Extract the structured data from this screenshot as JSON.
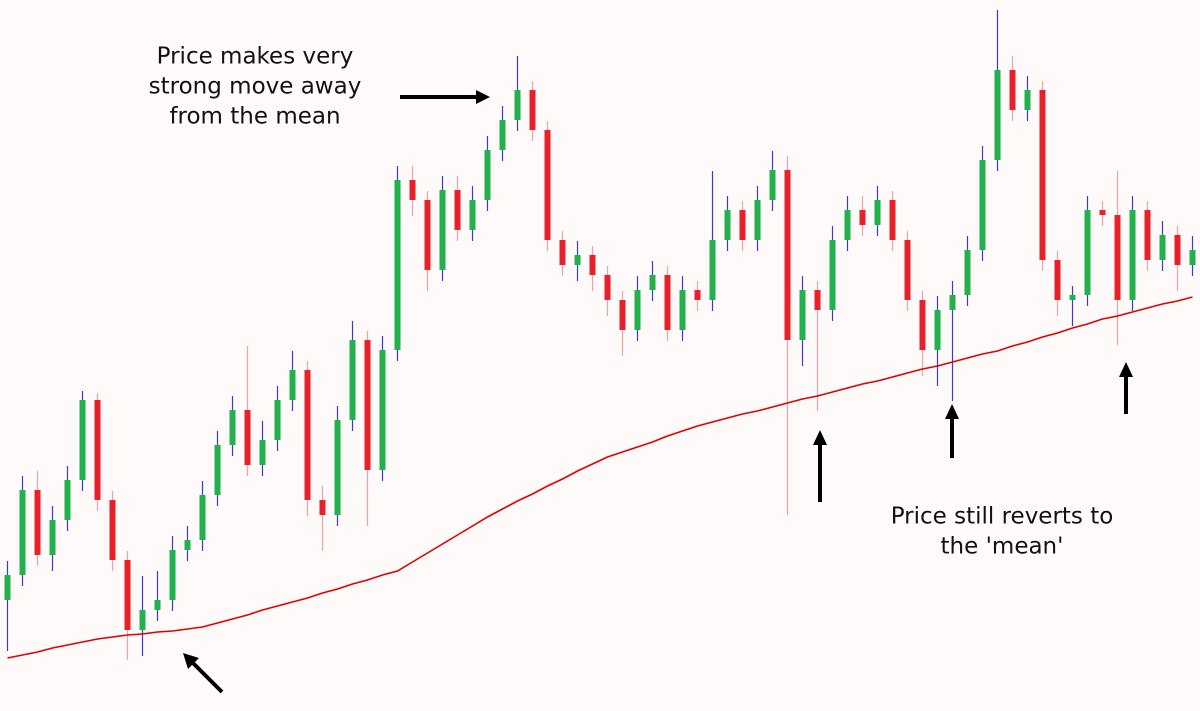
{
  "chart_data": {
    "type": "candlestick",
    "categories": [
      null,
      null,
      null,
      null,
      null,
      null,
      null,
      null,
      null,
      null,
      null,
      null,
      null,
      null,
      null,
      null,
      null,
      null,
      null,
      null,
      null,
      null,
      null,
      null,
      null,
      null,
      null,
      null,
      null,
      null,
      null,
      null,
      null,
      null,
      null,
      null,
      null,
      null,
      null,
      null,
      null,
      null,
      null,
      null,
      null,
      null,
      null,
      null,
      null,
      null,
      null,
      null,
      null,
      null,
      null,
      null,
      null,
      null,
      null,
      null,
      null,
      null,
      null,
      null,
      null,
      null,
      null,
      null,
      null,
      null,
      null,
      null,
      null,
      null,
      null,
      null,
      null,
      null,
      null,
      null
    ],
    "open": [
      111,
      136,
      221,
      156,
      191,
      231,
      311,
      211,
      151,
      81,
      101,
      111,
      161,
      171,
      216,
      266,
      301,
      246,
      271,
      311,
      341,
      211,
      196,
      291,
      371,
      241,
      361,
      531,
      511,
      441,
      521,
      481,
      511,
      561,
      591,
      621,
      581,
      471,
      446,
      456,
      436,
      411,
      381,
      421,
      436,
      381,
      421,
      411,
      471,
      501,
      471,
      511,
      541,
      371,
      421,
      401,
      471,
      501,
      486,
      511,
      471,
      411,
      361,
      401,
      416,
      461,
      551,
      641,
      601,
      621,
      451,
      411,
      416,
      501,
      496,
      411,
      501,
      451,
      476,
      446
    ],
    "high": [
      150,
      235,
      240,
      205,
      245,
      320,
      318,
      220,
      160,
      135,
      140,
      175,
      185,
      230,
      280,
      315,
      365,
      290,
      325,
      360,
      350,
      225,
      305,
      390,
      380,
      375,
      545,
      545,
      520,
      535,
      535,
      525,
      575,
      605,
      655,
      630,
      590,
      480,
      470,
      465,
      445,
      420,
      435,
      450,
      445,
      435,
      430,
      540,
      515,
      510,
      525,
      560,
      555,
      435,
      430,
      485,
      515,
      515,
      525,
      520,
      480,
      420,
      415,
      430,
      475,
      565,
      701,
      655,
      635,
      630,
      460,
      425,
      515,
      510,
      540,
      515,
      510,
      490,
      485,
      475
    ],
    "low": [
      60,
      125,
      145,
      140,
      180,
      220,
      200,
      140,
      51,
      55,
      90,
      100,
      150,
      160,
      205,
      255,
      235,
      235,
      260,
      300,
      195,
      160,
      185,
      280,
      185,
      230,
      350,
      495,
      420,
      430,
      470,
      470,
      500,
      550,
      580,
      570,
      460,
      435,
      430,
      420,
      395,
      355,
      370,
      410,
      370,
      370,
      400,
      400,
      460,
      460,
      460,
      500,
      196,
      345,
      300,
      390,
      460,
      475,
      475,
      460,
      400,
      335,
      325,
      310,
      405,
      450,
      540,
      590,
      590,
      440,
      395,
      385,
      405,
      485,
      366,
      400,
      440,
      440,
      420,
      435
    ],
    "close": [
      136,
      221,
      156,
      191,
      231,
      311,
      211,
      151,
      81,
      101,
      111,
      161,
      171,
      216,
      266,
      301,
      246,
      271,
      311,
      341,
      211,
      196,
      291,
      371,
      241,
      361,
      531,
      511,
      441,
      521,
      481,
      511,
      561,
      591,
      621,
      581,
      471,
      446,
      456,
      436,
      411,
      381,
      421,
      436,
      381,
      421,
      411,
      471,
      501,
      471,
      511,
      541,
      371,
      421,
      401,
      471,
      501,
      486,
      511,
      471,
      411,
      361,
      401,
      416,
      461,
      551,
      641,
      601,
      621,
      451,
      411,
      416,
      501,
      496,
      411,
      501,
      451,
      476,
      446,
      461
    ],
    "moving_average": {
      "color": "#e00000",
      "values": [
        53,
        56,
        59,
        63,
        66,
        69,
        72,
        74,
        76,
        77,
        79,
        80,
        82,
        84,
        88,
        92,
        96,
        101,
        105,
        109,
        113,
        118,
        122,
        127,
        131,
        136,
        140,
        149,
        158,
        167,
        176,
        185,
        194,
        202,
        210,
        217,
        225,
        232,
        240,
        247,
        254,
        259,
        264,
        269,
        275,
        280,
        285,
        289,
        293,
        297,
        300,
        304,
        308,
        312,
        315,
        319,
        323,
        327,
        330,
        334,
        338,
        342,
        345,
        349,
        353,
        357,
        360,
        365,
        369,
        374,
        378,
        383,
        387,
        392,
        395,
        399,
        403,
        407,
        410,
        414
      ]
    },
    "up_color": "#22b14c",
    "down_color": "#e8202a",
    "up_wick_color": "#3a3ad0",
    "down_wick_color": "#f2a0a8",
    "ylim": [
      0,
      711
    ],
    "annotations": [
      {
        "lines": [
          "Price makes very",
          "strong move away",
          "from the mean"
        ]
      },
      {
        "lines": [
          "Price still reverts to",
          "the 'mean'"
        ]
      }
    ]
  }
}
